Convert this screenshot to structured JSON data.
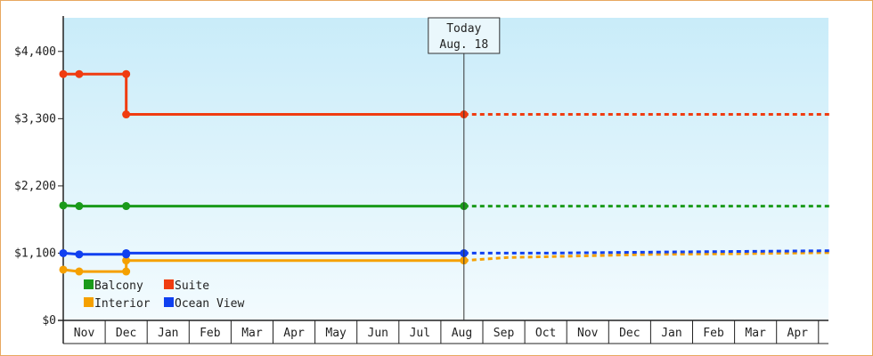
{
  "chart_data": {
    "type": "line",
    "ylim": [
      0,
      4950
    ],
    "y_ticks": [
      {
        "value": 0,
        "label": "$0"
      },
      {
        "value": 1100,
        "label": "$1,100"
      },
      {
        "value": 2200,
        "label": "$2,200"
      },
      {
        "value": 3300,
        "label": "$3,300"
      },
      {
        "value": 4400,
        "label": "$4,400"
      }
    ],
    "x_months": [
      "Nov",
      "Dec",
      "Jan",
      "Feb",
      "Mar",
      "Apr",
      "May",
      "Jun",
      "Jul",
      "Aug",
      "Sep",
      "Oct",
      "Nov",
      "Dec",
      "Jan",
      "Feb",
      "Mar",
      "Apr"
    ],
    "today": {
      "line1": "Today",
      "line2": "Aug. 18",
      "month_index": 9.55
    },
    "series": [
      {
        "name": "Balcony",
        "color": "#1a9a1a",
        "points": [
          [
            0.0,
            1880
          ],
          [
            0.38,
            1870
          ],
          [
            1.5,
            1870
          ],
          [
            9.55,
            1870
          ]
        ],
        "projection": [
          [
            9.55,
            1870
          ],
          [
            18.3,
            1870
          ]
        ]
      },
      {
        "name": "Suite",
        "color": "#f03c10",
        "points": [
          [
            0.0,
            4030
          ],
          [
            0.38,
            4030
          ],
          [
            1.5,
            4030
          ],
          [
            1.5,
            3370
          ],
          [
            9.55,
            3370
          ]
        ],
        "projection": [
          [
            9.55,
            3370
          ],
          [
            18.3,
            3370
          ]
        ]
      },
      {
        "name": "Interior",
        "color": "#f5a000",
        "points": [
          [
            0.0,
            830
          ],
          [
            0.38,
            800
          ],
          [
            1.5,
            800
          ],
          [
            1.5,
            980
          ],
          [
            9.55,
            980
          ]
        ],
        "projection": [
          [
            9.55,
            980
          ],
          [
            10.6,
            1030
          ],
          [
            12.0,
            1050
          ],
          [
            14.0,
            1080
          ],
          [
            16.0,
            1090
          ],
          [
            18.3,
            1110
          ]
        ]
      },
      {
        "name": "Ocean View",
        "color": "#1040f0",
        "points": [
          [
            0.0,
            1100
          ],
          [
            0.38,
            1080
          ],
          [
            1.5,
            1080
          ],
          [
            1.5,
            1100
          ],
          [
            9.55,
            1100
          ]
        ],
        "projection": [
          [
            9.55,
            1100
          ],
          [
            11.5,
            1100
          ],
          [
            14.5,
            1120
          ],
          [
            18.3,
            1140
          ]
        ]
      }
    ],
    "legend": {
      "placement": "bottom-left",
      "order": [
        "Balcony",
        "Suite",
        "Interior",
        "Ocean View"
      ]
    }
  }
}
